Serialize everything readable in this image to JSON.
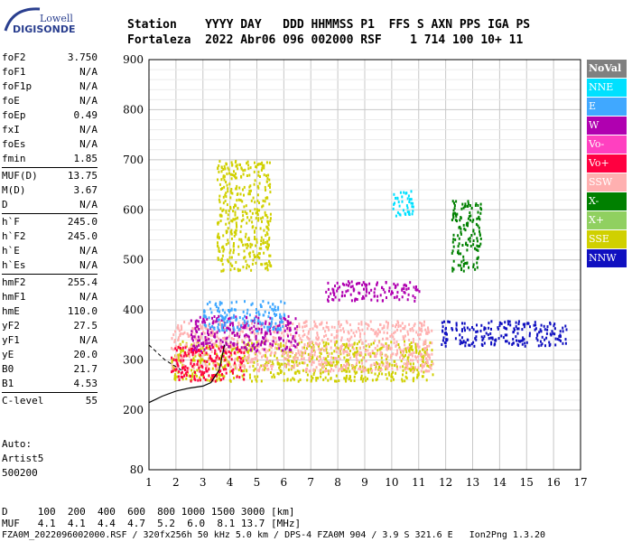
{
  "logo": {
    "line1": "Lowell",
    "line2": "DIGISONDE"
  },
  "header": {
    "row1": "Station    YYYY DAY   DDD HHMMSS P1  FFS S AXN PPS IGA PS",
    "row2": "Fortaleza  2022 Abr06 096 002000 RSF    1 714 100 10+ 11"
  },
  "params": {
    "group1": [
      {
        "k": "foF2",
        "v": "3.750"
      },
      {
        "k": "foF1",
        "v": "N/A"
      },
      {
        "k": "foF1p",
        "v": "N/A"
      },
      {
        "k": "foE",
        "v": "N/A"
      },
      {
        "k": "foEp",
        "v": "0.49"
      },
      {
        "k": "fxI",
        "v": "N/A"
      },
      {
        "k": "foEs",
        "v": "N/A"
      },
      {
        "k": "fmin",
        "v": "1.85"
      }
    ],
    "group2": [
      {
        "k": "MUF(D)",
        "v": "13.75"
      },
      {
        "k": "M(D)",
        "v": "3.67"
      },
      {
        "k": "D",
        "v": "N/A"
      }
    ],
    "group3": [
      {
        "k": "h`F",
        "v": "245.0"
      },
      {
        "k": "h`F2",
        "v": "245.0"
      },
      {
        "k": "h`E",
        "v": "N/A"
      },
      {
        "k": "h`Es",
        "v": "N/A"
      }
    ],
    "group4": [
      {
        "k": "hmF2",
        "v": "255.4"
      },
      {
        "k": "hmF1",
        "v": "N/A"
      },
      {
        "k": "hmE",
        "v": "110.0"
      },
      {
        "k": "yF2",
        "v": "27.5"
      },
      {
        "k": "yF1",
        "v": "N/A"
      },
      {
        "k": "yE",
        "v": "20.0"
      },
      {
        "k": "B0",
        "v": "21.7"
      },
      {
        "k": "B1",
        "v": "4.53"
      }
    ],
    "group5": [
      {
        "k": "C-level",
        "v": "55"
      }
    ]
  },
  "auto": {
    "l1": "Auto:",
    "l2": "Artist5",
    "l3": "500200"
  },
  "legend": [
    {
      "label": "NoVal",
      "color": "#808080"
    },
    {
      "label": "NNE",
      "color": "#00e0ff"
    },
    {
      "label": "E",
      "color": "#40a8ff"
    },
    {
      "label": "W",
      "color": "#b000b0"
    },
    {
      "label": "Vo-",
      "color": "#ff40c0"
    },
    {
      "label": "Vo+",
      "color": "#ff0040"
    },
    {
      "label": "SSW",
      "color": "#ffb0b0"
    },
    {
      "label": "X-",
      "color": "#008000"
    },
    {
      "label": "X+",
      "color": "#90d060"
    },
    {
      "label": "SSE",
      "color": "#d0d000"
    },
    {
      "label": "NNW",
      "color": "#1010c0"
    }
  ],
  "axes": {
    "x_ticks": [
      "1",
      "2",
      "3",
      "4",
      "5",
      "6",
      "7",
      "8",
      "9",
      "10",
      "11",
      "12",
      "13",
      "14",
      "15",
      "16",
      "17"
    ],
    "y_ticks": [
      "900",
      "800",
      "700",
      "600",
      "500",
      "400",
      "300",
      "200",
      "80"
    ]
  },
  "bottom": {
    "d_row": "D     100  200  400  600  800 1000 1500 3000 [km]",
    "muf_row": "MUF   4.1  4.1  4.4  4.7  5.2  6.0  8.1 13.7 [MHz]",
    "footer": "FZA0M_2022096002000.RSF / 320fx256h 50 kHz 5.0 km / DPS-4 FZA0M 904 / 3.9 S 321.6 E   Ion2Png 1.3.20"
  },
  "chart_data": {
    "type": "scatter",
    "title": "",
    "xlabel": "",
    "ylabel": "",
    "xlim": [
      1,
      17
    ],
    "ylim": [
      80,
      900
    ],
    "grid": true,
    "legend_placement": "right",
    "regions": [
      {
        "series": "SSE",
        "x": [
          1.8,
          11.5
        ],
        "y": [
          260,
          340
        ]
      },
      {
        "series": "SSW",
        "x": [
          1.8,
          11.5
        ],
        "y": [
          280,
          380
        ]
      },
      {
        "series": "Vo+",
        "x": [
          1.8,
          4.5
        ],
        "y": [
          260,
          330
        ]
      },
      {
        "series": "W",
        "x": [
          2.5,
          6.5
        ],
        "y": [
          320,
          390
        ]
      },
      {
        "series": "E",
        "x": [
          3.0,
          6.0
        ],
        "y": [
          360,
          420
        ]
      },
      {
        "series": "W",
        "x": [
          7.5,
          11.0
        ],
        "y": [
          420,
          460
        ]
      },
      {
        "series": "NNE",
        "x": [
          10.0,
          10.8
        ],
        "y": [
          590,
          640
        ]
      },
      {
        "series": "X-",
        "x": [
          12.2,
          13.3
        ],
        "y": [
          480,
          620
        ]
      },
      {
        "series": "NNW",
        "x": [
          11.8,
          16.5
        ],
        "y": [
          330,
          380
        ]
      },
      {
        "series": "SSE",
        "x": [
          3.5,
          5.5
        ],
        "y": [
          480,
          700
        ]
      }
    ],
    "curve_trace": {
      "x": [
        1.0,
        1.5,
        2.0,
        2.5,
        3.0,
        3.3,
        3.6,
        3.8
      ],
      "y": [
        215,
        228,
        238,
        244,
        248,
        255,
        280,
        330
      ]
    }
  }
}
